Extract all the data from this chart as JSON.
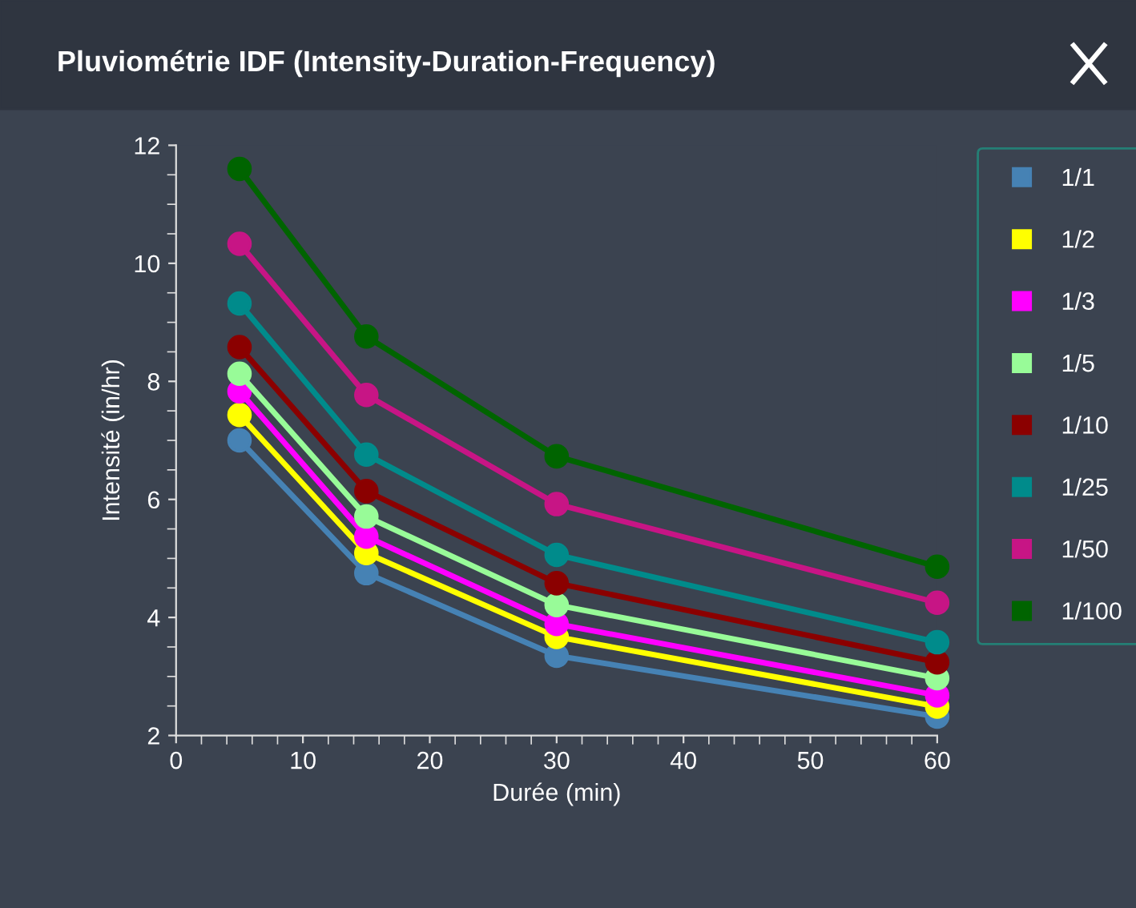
{
  "chart_data": {
    "type": "line",
    "title": "Pluviométrie IDF (Intensity-Duration-Frequency)",
    "xlabel": "Durée (min)",
    "ylabel": "Intensité (in/hr)",
    "x": [
      5,
      15,
      30,
      60
    ],
    "series": [
      {
        "name": "1/1",
        "color": "#4682b4",
        "values": [
          7.0,
          4.75,
          3.35,
          2.32
        ]
      },
      {
        "name": "1/2",
        "color": "#ffff00",
        "values": [
          7.43,
          5.09,
          3.67,
          2.49
        ]
      },
      {
        "name": "1/3",
        "color": "#ff00ff",
        "values": [
          7.83,
          5.37,
          3.89,
          2.68
        ]
      },
      {
        "name": "1/5",
        "color": "#98fb98",
        "values": [
          8.13,
          5.71,
          4.21,
          2.97
        ]
      },
      {
        "name": "1/10",
        "color": "#8b0000",
        "values": [
          8.58,
          6.14,
          4.58,
          3.24
        ]
      },
      {
        "name": "1/25",
        "color": "#008b8b",
        "values": [
          9.32,
          6.76,
          5.06,
          3.58
        ]
      },
      {
        "name": "1/50",
        "color": "#c71585",
        "values": [
          10.33,
          7.77,
          5.92,
          4.25
        ]
      },
      {
        "name": "1/100",
        "color": "#006400",
        "values": [
          11.6,
          8.76,
          6.73,
          4.86
        ]
      }
    ],
    "xlim": [
      0,
      60
    ],
    "xticks": [
      0,
      10,
      20,
      30,
      40,
      50,
      60
    ],
    "ylim": [
      2,
      12
    ],
    "yticks": [
      2,
      4,
      6,
      8,
      10,
      12
    ],
    "grid": false,
    "legend": "top right",
    "marker": "circle",
    "line_style": "solid"
  }
}
